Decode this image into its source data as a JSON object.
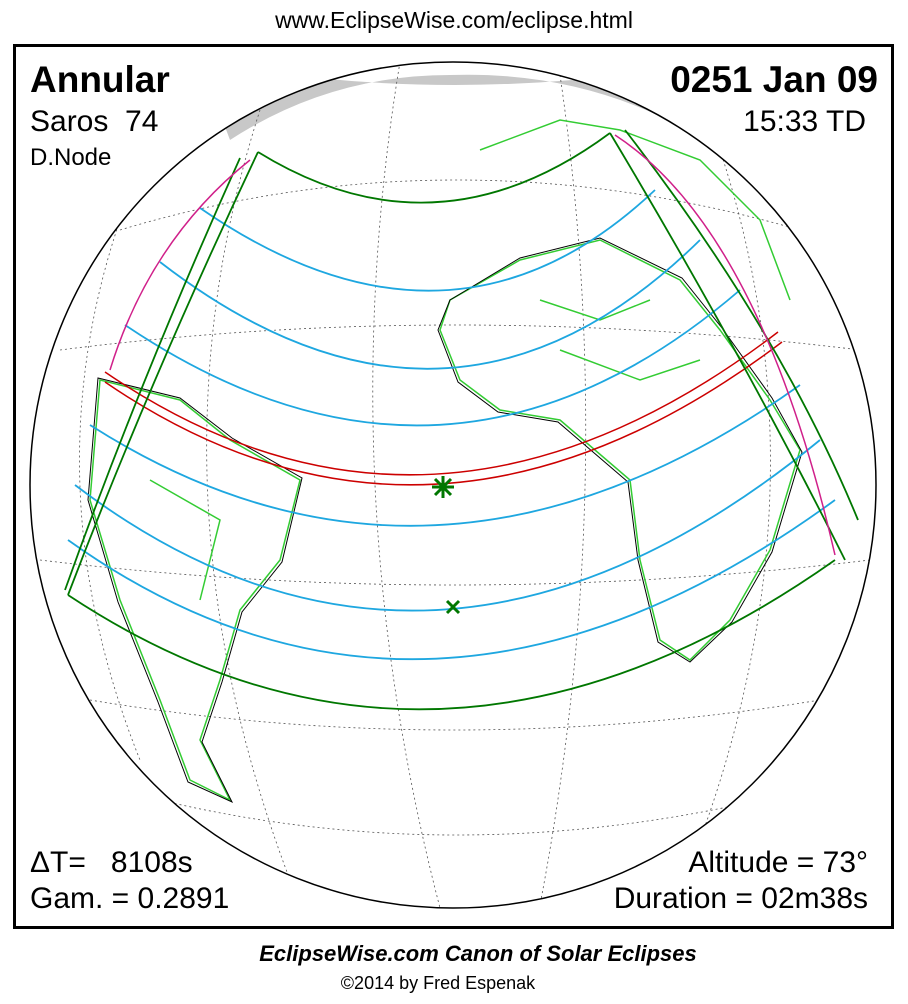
{
  "header": {
    "url": "www.EclipseWise.com/eclipse.html"
  },
  "panel": {
    "type": "Annular",
    "saros": "Saros  74",
    "node": "D.Node",
    "date": "0251 Jan 09",
    "time": "15:33 TD",
    "delta_t": "ΔT=   8108s",
    "gamma": "Gam. = 0.2891",
    "altitude": "Altitude = 73°",
    "duration": "Duration = 02m38s"
  },
  "footer": {
    "title": "EclipseWise.com Canon of Solar Eclipses",
    "copyright": "©2014 by Fred Espenak"
  }
}
